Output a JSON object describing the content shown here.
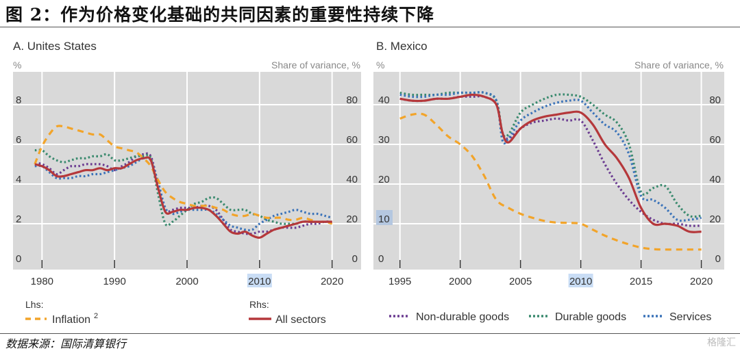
{
  "figure": {
    "title": "图 2：作为价格变化基础的共同因素的重要性持续下降",
    "source": "数据来源：国际清算银行",
    "watermark": "格隆汇"
  },
  "colors": {
    "inflation": "#F2A42A",
    "all_sectors": "#B5383B",
    "non_durable": "#6B3C91",
    "durable": "#3A8A6E",
    "services": "#3B73B9",
    "plot_bg": "#D9D9D9",
    "grid": "#FFFFFF",
    "highlight": "#C9DDF5"
  },
  "legend": {
    "lhs_head": "Lhs:",
    "rhs_head": "Rhs:",
    "inflation": "Inflation",
    "inflation_sup": "2",
    "all_sectors": "All sectors",
    "non_durable": "Non-durable goods",
    "durable": "Durable goods",
    "services": "Services"
  },
  "chart_data": [
    {
      "type": "line",
      "title": "A. Unites States",
      "ylabel_left": "%",
      "ylabel_right": "Share of variance, %",
      "xlim": [
        1976,
        2024
      ],
      "ylim_left": [
        0,
        10
      ],
      "ylim_right": [
        0,
        100
      ],
      "xticks": [
        1980,
        1990,
        2000,
        2010,
        2020
      ],
      "yticks_left": [
        0,
        2,
        4,
        6,
        8
      ],
      "yticks_right": [
        0,
        20,
        40,
        60,
        80
      ],
      "highlighted_tick": "2010",
      "grid": true,
      "series": [
        {
          "name": "Inflation",
          "axis": "left",
          "style": "dashed",
          "color_key": "inflation",
          "x": [
            1979,
            1980,
            1981,
            1982,
            1983,
            1984,
            1985,
            1986,
            1987,
            1988,
            1989,
            1990,
            1991,
            1992,
            1993,
            1994,
            1995,
            1996,
            1997,
            1998,
            1999,
            2000,
            2001,
            2002,
            2003,
            2004,
            2005,
            2006,
            2007,
            2008,
            2009,
            2010,
            2011,
            2012,
            2013,
            2014,
            2015,
            2016,
            2017,
            2018,
            2019,
            2020
          ],
          "y": [
            5.0,
            5.9,
            6.5,
            6.9,
            6.9,
            6.8,
            6.7,
            6.6,
            6.5,
            6.5,
            6.2,
            5.9,
            5.8,
            5.7,
            5.6,
            5.3,
            4.9,
            4.2,
            3.6,
            3.3,
            3.1,
            3.0,
            2.9,
            2.9,
            2.9,
            2.8,
            2.7,
            2.5,
            2.4,
            2.4,
            2.5,
            2.4,
            2.3,
            2.3,
            2.3,
            2.2,
            2.2,
            2.3,
            2.2,
            2.1,
            2.1,
            2.0
          ]
        },
        {
          "name": "All sectors",
          "axis": "right",
          "style": "solid",
          "color_key": "all_sectors",
          "x": [
            1979,
            1980,
            1981,
            1982,
            1983,
            1984,
            1985,
            1986,
            1987,
            1988,
            1989,
            1990,
            1991,
            1992,
            1993,
            1994,
            1995,
            1996,
            1997,
            1998,
            1999,
            2000,
            2001,
            2002,
            2003,
            2004,
            2005,
            2006,
            2007,
            2008,
            2009,
            2010,
            2011,
            2012,
            2013,
            2014,
            2015,
            2016,
            2017,
            2018,
            2019,
            2020
          ],
          "y": [
            50,
            49,
            47,
            44,
            44,
            45,
            46,
            47,
            47,
            48,
            47,
            48,
            48,
            50,
            52,
            53,
            52,
            38,
            26,
            26,
            27,
            27,
            28,
            28,
            27,
            24,
            20,
            16,
            15,
            16,
            14,
            13,
            15,
            17,
            18,
            19,
            20,
            21,
            21,
            21,
            21,
            21
          ]
        },
        {
          "name": "Non-durable goods",
          "axis": "right",
          "style": "dotted",
          "color_key": "non_durable",
          "x": [
            1979,
            1980,
            1981,
            1982,
            1983,
            1984,
            1985,
            1986,
            1987,
            1988,
            1989,
            1990,
            1991,
            1992,
            1993,
            1994,
            1995,
            1996,
            1997,
            1998,
            1999,
            2000,
            2001,
            2002,
            2003,
            2004,
            2005,
            2006,
            2007,
            2008,
            2009,
            2010,
            2011,
            2012,
            2013,
            2014,
            2015,
            2016,
            2017,
            2018,
            2019,
            2020
          ],
          "y": [
            51,
            50,
            48,
            45,
            47,
            49,
            49,
            50,
            50,
            50,
            49,
            47,
            49,
            51,
            54,
            55,
            54,
            40,
            27,
            27,
            28,
            28,
            28,
            29,
            29,
            27,
            22,
            17,
            16,
            15,
            15,
            16,
            16,
            17,
            18,
            18,
            18,
            19,
            20,
            20,
            21,
            21
          ]
        },
        {
          "name": "Durable goods",
          "axis": "right",
          "style": "dotted",
          "color_key": "durable",
          "x": [
            1979,
            1980,
            1981,
            1982,
            1983,
            1984,
            1985,
            1986,
            1987,
            1988,
            1989,
            1990,
            1991,
            1992,
            1993,
            1994,
            1995,
            1996,
            1997,
            1998,
            1999,
            2000,
            2001,
            2002,
            2003,
            2004,
            2005,
            2006,
            2007,
            2008,
            2009,
            2010,
            2011,
            2012,
            2013,
            2014,
            2015,
            2016,
            2017,
            2018,
            2019,
            2020
          ],
          "y": [
            57,
            57,
            54,
            52,
            51,
            52,
            53,
            53,
            54,
            54,
            55,
            52,
            52,
            53,
            54,
            54,
            53,
            35,
            20,
            21,
            24,
            27,
            30,
            31,
            33,
            33,
            30,
            27,
            27,
            27,
            25,
            24,
            22,
            21,
            20,
            20,
            20,
            21,
            21,
            21,
            21,
            21
          ]
        },
        {
          "name": "Services",
          "axis": "right",
          "style": "dotted",
          "color_key": "services",
          "x": [
            1979,
            1980,
            1981,
            1982,
            1983,
            1984,
            1985,
            1986,
            1987,
            1988,
            1989,
            1990,
            1991,
            1992,
            1993,
            1994,
            1995,
            1996,
            1997,
            1998,
            1999,
            2000,
            2001,
            2002,
            2003,
            2004,
            2005,
            2006,
            2007,
            2008,
            2009,
            2010,
            2011,
            2012,
            2013,
            2014,
            2015,
            2016,
            2017,
            2018,
            2019,
            2020
          ],
          "y": [
            49,
            49,
            46,
            43,
            43,
            43,
            44,
            44,
            45,
            45,
            46,
            47,
            48,
            49,
            51,
            53,
            52,
            41,
            28,
            25,
            26,
            27,
            27,
            27,
            27,
            25,
            22,
            19,
            18,
            17,
            17,
            20,
            22,
            24,
            25,
            26,
            27,
            26,
            25,
            25,
            24,
            23
          ]
        }
      ]
    },
    {
      "type": "line",
      "title": "B. Mexico",
      "ylabel_left": "%",
      "ylabel_right": "Share of variance, %",
      "xlim": [
        1992.8,
        2021.9
      ],
      "ylim_left": [
        0,
        50
      ],
      "ylim_right": [
        0,
        100
      ],
      "xticks": [
        1995,
        2000,
        2005,
        2010,
        2015,
        2020
      ],
      "yticks_left": [
        0,
        10,
        20,
        30,
        40
      ],
      "yticks_right": [
        0,
        20,
        40,
        60,
        80
      ],
      "highlighted_tick": "2010",
      "highlighted_ytick": "10",
      "grid": true,
      "series": [
        {
          "name": "Inflation",
          "axis": "left",
          "style": "dashed",
          "color_key": "inflation",
          "x": [
            1995,
            1996,
            1997,
            1998,
            1999,
            2000,
            2001,
            2002,
            2003,
            2004,
            2005,
            2006,
            2007,
            2008,
            2009,
            2010,
            2011,
            2012,
            2013,
            2014,
            2015,
            2016,
            2017,
            2018,
            2019,
            2020
          ],
          "y": [
            36.5,
            37.5,
            37.5,
            35,
            32,
            30,
            27,
            22,
            16,
            14,
            12.5,
            11.5,
            10.7,
            10.3,
            10.2,
            10.0,
            8.5,
            7.0,
            5.8,
            4.8,
            4.0,
            3.6,
            3.5,
            3.5,
            3.5,
            3.5
          ]
        },
        {
          "name": "All sectors",
          "axis": "right",
          "style": "solid",
          "color_key": "all_sectors",
          "x": [
            1995,
            1996,
            1997,
            1998,
            1999,
            2000,
            2001,
            2002,
            2003,
            2003.5,
            2004,
            2005,
            2006,
            2007,
            2008,
            2009,
            2010,
            2011,
            2012,
            2013,
            2014,
            2015,
            2016,
            2017,
            2018,
            2019,
            2020
          ],
          "y": [
            83,
            82,
            82,
            83,
            83,
            84,
            85,
            84,
            80,
            66,
            61,
            68,
            72,
            74,
            75,
            76,
            76,
            70,
            60,
            53,
            43,
            28,
            20,
            20,
            19,
            16,
            16
          ]
        },
        {
          "name": "Non-durable goods",
          "axis": "right",
          "style": "dotted",
          "color_key": "non_durable",
          "x": [
            1995,
            1996,
            1997,
            1998,
            1999,
            2000,
            2001,
            2002,
            2003,
            2003.5,
            2004,
            2005,
            2006,
            2007,
            2008,
            2009,
            2010,
            2011,
            2012,
            2013,
            2014,
            2015,
            2016,
            2017,
            2018,
            2019,
            2020
          ],
          "y": [
            83,
            82,
            82,
            83,
            83,
            84,
            84,
            84,
            80,
            66,
            63,
            68,
            71,
            72,
            73,
            72,
            72,
            62,
            50,
            40,
            32,
            26,
            22,
            20,
            20,
            19,
            19
          ]
        },
        {
          "name": "Durable goods",
          "axis": "right",
          "style": "dotted",
          "color_key": "durable",
          "x": [
            1995,
            1996,
            1997,
            1998,
            1999,
            2000,
            2001,
            2002,
            2003,
            2003.5,
            2004,
            2005,
            2006,
            2007,
            2008,
            2009,
            2010,
            2011,
            2012,
            2013,
            2014,
            2015,
            2016,
            2017,
            2018,
            2019,
            2020
          ],
          "y": [
            86,
            85,
            85,
            85,
            86,
            86,
            86,
            86,
            82,
            66,
            65,
            76,
            80,
            83,
            85,
            85,
            84,
            80,
            75,
            71,
            60,
            36,
            38,
            39,
            30,
            24,
            24
          ]
        },
        {
          "name": "Services",
          "axis": "right",
          "style": "dotted",
          "color_key": "services",
          "x": [
            1995,
            1996,
            1997,
            1998,
            1999,
            2000,
            2001,
            2002,
            2003,
            2003.5,
            2004,
            2005,
            2006,
            2007,
            2008,
            2009,
            2010,
            2011,
            2012,
            2013,
            2014,
            2015,
            2016,
            2017,
            2018,
            2019,
            2020
          ],
          "y": [
            85,
            84,
            84,
            85,
            85,
            86,
            86,
            86,
            82,
            62,
            63,
            72,
            76,
            79,
            81,
            82,
            82,
            76,
            70,
            66,
            55,
            34,
            32,
            28,
            22,
            22,
            23
          ]
        }
      ]
    }
  ]
}
